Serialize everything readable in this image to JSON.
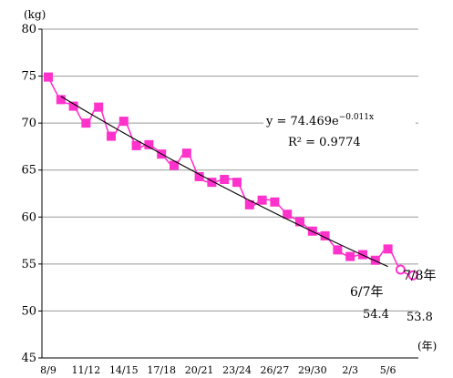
{
  "chart_data": {
    "type": "line",
    "ylabel_unit": "(kg)",
    "xlabel_unit": "(年)",
    "ylim": [
      45,
      80
    ],
    "yticks": [
      45,
      50,
      55,
      60,
      65,
      70,
      75,
      80
    ],
    "grid": "horizontal",
    "x_tick_labels": [
      "8/9",
      "11/12",
      "14/15",
      "17/18",
      "20/21",
      "23/24",
      "26/27",
      "29/30",
      "2/3",
      "5/6"
    ],
    "x": [
      "8/9",
      "9/10",
      "10/11",
      "11/12",
      "12/13",
      "13/14",
      "14/15",
      "15/16",
      "16/17",
      "17/18",
      "18/19",
      "19/20",
      "20/21",
      "21/22",
      "22/23",
      "23/24",
      "24/25",
      "25/26",
      "26/27",
      "27/28",
      "28/29",
      "29/30",
      "30/元",
      "元/2",
      "2/3",
      "3/4",
      "4/5",
      "5/6",
      "6/7",
      "7/8"
    ],
    "series": [
      {
        "values": [
          74.9,
          72.5,
          71.8,
          70.0,
          71.7,
          68.6,
          70.2,
          67.6,
          67.7,
          66.7,
          65.5,
          66.8,
          64.3,
          63.7,
          64.0,
          63.7,
          61.3,
          61.8,
          61.6,
          60.3,
          59.5,
          58.5,
          58.0,
          56.5,
          55.8,
          56.0,
          55.4,
          56.6,
          54.4,
          53.8
        ],
        "preliminary_from_index": 28,
        "color": "#ff33cc"
      }
    ],
    "trendline": {
      "type": "exponential",
      "a": 74.469,
      "b": -0.011,
      "equation_prefix": "y = 74.469e",
      "equation_exponent": "−0.011x",
      "r_squared_label": "R² = 0.9774",
      "color": "#000000"
    },
    "annotations": [
      {
        "label": "6/7年",
        "value": "54.4"
      },
      {
        "label": "7/8年",
        "value": "53.8"
      }
    ]
  }
}
